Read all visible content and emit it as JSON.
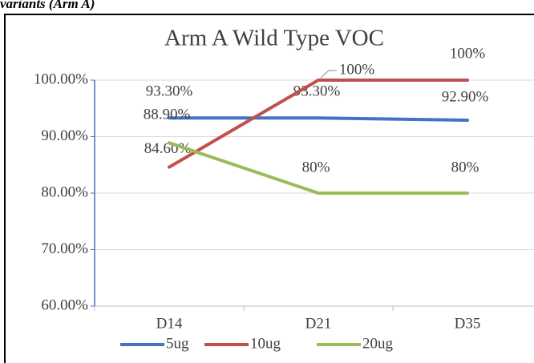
{
  "caption": "variants (Arm A)",
  "chart_data": {
    "type": "line",
    "title": "Arm A Wild Type VOC",
    "categories": [
      "D14",
      "D21",
      "D35"
    ],
    "series": [
      {
        "name": "5ug",
        "color": "#4472c4",
        "values": [
          93.3,
          93.3,
          92.9
        ],
        "value_labels": [
          "93.30%",
          "93.30%",
          "92.90%"
        ]
      },
      {
        "name": "10ug",
        "color": "#c0504d",
        "values": [
          84.6,
          100,
          100
        ],
        "value_labels": [
          "84.60%",
          "100%",
          "100%"
        ]
      },
      {
        "name": "20ug",
        "color": "#9bbb59",
        "values": [
          88.9,
          80,
          80
        ],
        "value_labels": [
          "88.90%",
          "80%",
          "80%"
        ]
      }
    ],
    "ylim": [
      60,
      100
    ],
    "yticks": [
      {
        "value": 60,
        "label": "60.00%"
      },
      {
        "value": 70,
        "label": "70.00%"
      },
      {
        "value": 80,
        "label": "80.00%"
      },
      {
        "value": 90,
        "label": "90.00%"
      },
      {
        "value": 100,
        "label": "100.00%"
      }
    ],
    "grid": true,
    "legend": "bottom"
  }
}
